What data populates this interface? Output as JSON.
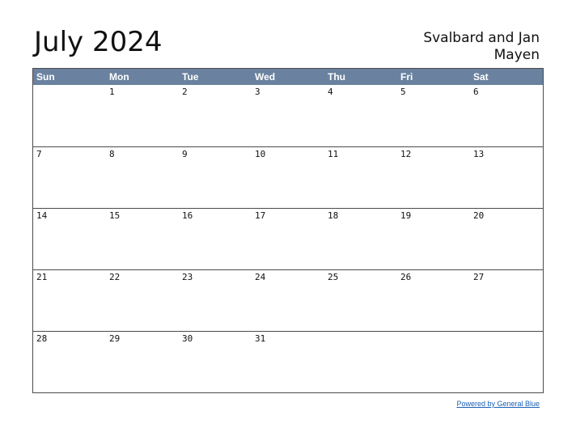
{
  "title": "July 2024",
  "region": "Svalbard and Jan Mayen",
  "weekdays": [
    "Sun",
    "Mon",
    "Tue",
    "Wed",
    "Thu",
    "Fri",
    "Sat"
  ],
  "weeks": [
    [
      "",
      "1",
      "2",
      "3",
      "4",
      "5",
      "6"
    ],
    [
      "7",
      "8",
      "9",
      "10",
      "11",
      "12",
      "13"
    ],
    [
      "14",
      "15",
      "16",
      "17",
      "18",
      "19",
      "20"
    ],
    [
      "21",
      "22",
      "23",
      "24",
      "25",
      "26",
      "27"
    ],
    [
      "28",
      "29",
      "30",
      "31",
      "",
      "",
      ""
    ]
  ],
  "footer": {
    "link_text": "Powered by General Blue"
  },
  "colors": {
    "header_bg": "#6a829f",
    "header_text": "#ffffff",
    "link": "#1a5fb4"
  }
}
